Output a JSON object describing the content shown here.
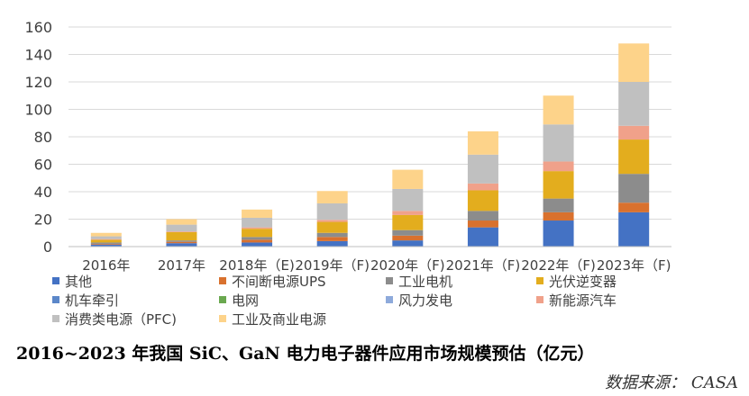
{
  "chart_data": {
    "type": "bar",
    "stacked": true,
    "title": "",
    "xlabel": "",
    "ylabel": "",
    "ylim": [
      0,
      160
    ],
    "yticks": [
      0,
      20,
      40,
      60,
      80,
      100,
      120,
      140,
      160
    ],
    "grid": true,
    "legend_position": "bottom",
    "categories": [
      "2016年",
      "2017年",
      "2018年（E)",
      "2019年（F)",
      "2020年（F)",
      "2021年（F)",
      "2022年（F)",
      "2023年（F)"
    ],
    "series": [
      {
        "name": "其他",
        "color": "#4472c4",
        "values": [
          1.5,
          2.5,
          3,
          4,
          4.5,
          14,
          19,
          25
        ]
      },
      {
        "name": "不间断电源UPS",
        "color": "#d9712e",
        "values": [
          0.5,
          1,
          2,
          3,
          3.5,
          5,
          6,
          7
        ]
      },
      {
        "name": "工业电机",
        "color": "#8c8c8c",
        "values": [
          1,
          1,
          2,
          3,
          4,
          7,
          10,
          21
        ]
      },
      {
        "name": "光伏逆变器",
        "color": "#e3ad1e",
        "values": [
          2,
          6,
          6,
          8,
          11,
          15,
          20,
          25
        ]
      },
      {
        "name": "机车牵引",
        "color": "#5b87c9",
        "values": [
          0,
          0,
          0,
          0,
          0,
          0,
          0,
          0
        ]
      },
      {
        "name": "电网",
        "color": "#6aa84f",
        "values": [
          0,
          0,
          0,
          0,
          0,
          0,
          0,
          0
        ]
      },
      {
        "name": "风力发电",
        "color": "#8eaadb",
        "values": [
          0,
          0,
          0,
          0,
          0,
          0,
          0,
          0
        ]
      },
      {
        "name": "新能源汽车",
        "color": "#f0a18a",
        "values": [
          0.5,
          0.5,
          1,
          1.5,
          3,
          5,
          7,
          10
        ]
      },
      {
        "name": "消费类电源（PFC)",
        "color": "#c0c0c0",
        "values": [
          2,
          5,
          7,
          12,
          16,
          21,
          27,
          32
        ]
      },
      {
        "name": "工业及商业电源",
        "color": "#fdd38a",
        "values": [
          2.5,
          4,
          6,
          9,
          14,
          17,
          21,
          28
        ]
      }
    ]
  },
  "caption": "2016~2023 年我国 SiC、GaN 电力电子器件应用市场规模预估（亿元）",
  "source": "数据来源： CASA"
}
